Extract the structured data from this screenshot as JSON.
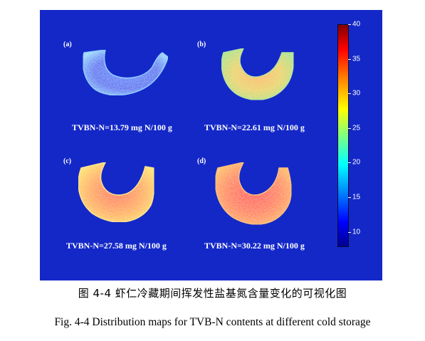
{
  "figure": {
    "panels": [
      {
        "label": "(a)",
        "caption": "TVBN-N=13.79 mg N/100 g"
      },
      {
        "label": "(b)",
        "caption": "TVBN-N=22.61 mg N/100 g"
      },
      {
        "label": "(c)",
        "caption": "TVBN-N=27.58 mg N/100 g"
      },
      {
        "label": "(d)",
        "caption": "TVBN-N=30.22 mg N/100 g"
      }
    ],
    "colorbar": {
      "min": 8,
      "max": 40,
      "ticks": [
        "10",
        "15",
        "20",
        "25",
        "30",
        "35",
        "40"
      ],
      "colormap": "jet"
    },
    "colors": {
      "background": "#1428c8",
      "low": "#0000ff",
      "mid": "#80ff80",
      "high": "#ff0000"
    }
  },
  "caption_cn": "图 4-4  虾仁冷藏期间挥发性盐基氮含量变化的可视化图",
  "caption_en": "Fig. 4-4 Distribution maps for TVB-N contents at different cold storage"
}
